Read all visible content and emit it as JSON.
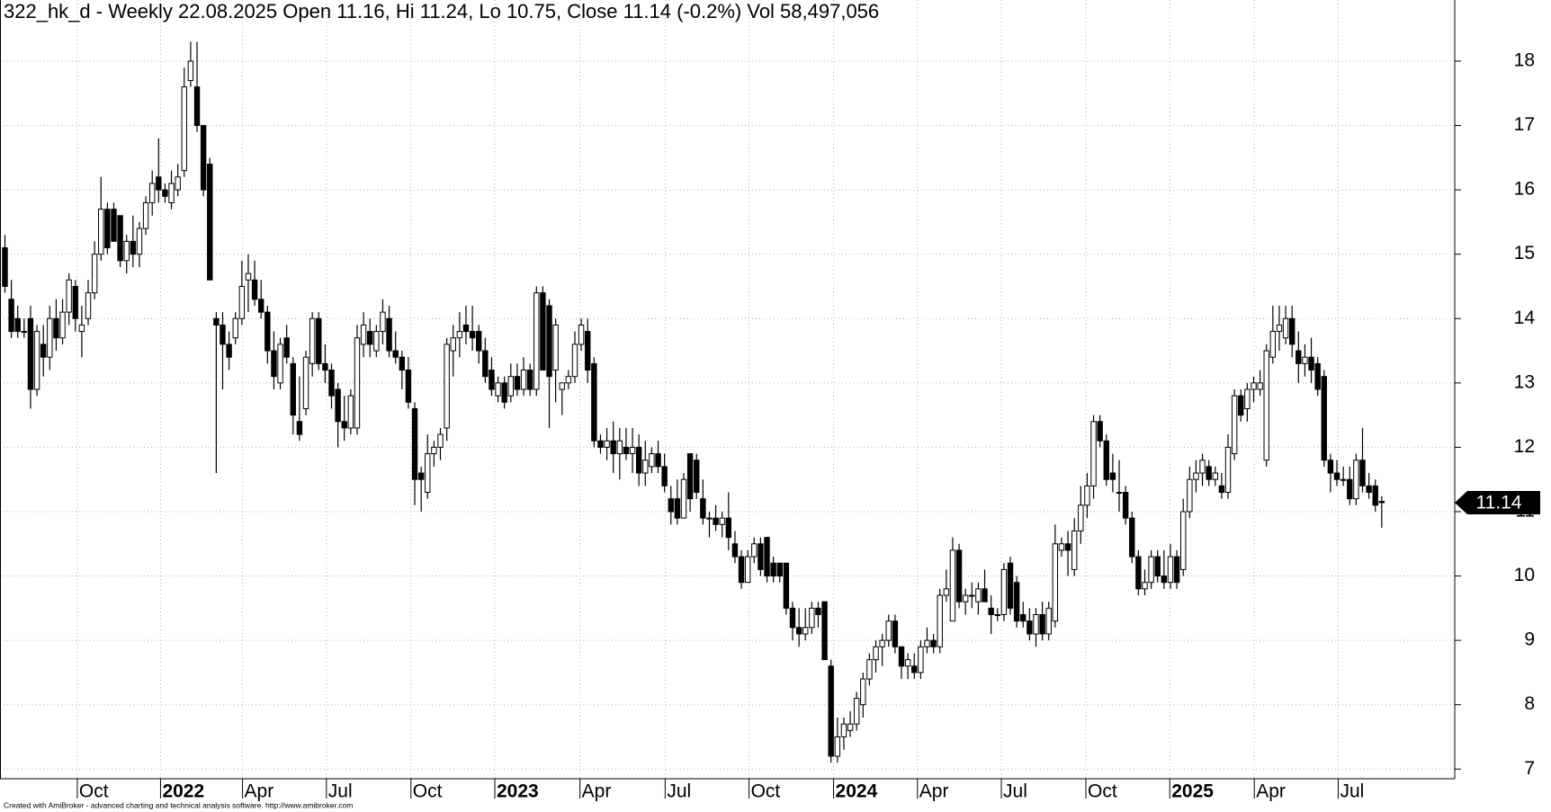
{
  "chart_data": {
    "type": "candlestick",
    "title": "322_hk_d - Weekly 22.08.2025 Open 11.16, Hi 11.24, Lo 10.75, Close 11.14 (-0.2%) Vol 58,497,056",
    "footer": "Created with AmiBroker - advanced charting and technical analysis software. http://www.amibroker.com",
    "open": [
      15.1,
      14.3,
      14.0,
      13.8,
      14.0,
      12.9,
      13.6,
      13.4,
      14.0,
      13.7,
      14.1,
      14.5,
      13.8,
      14.0,
      14.4,
      15.0,
      15.7,
      15.7,
      15.6,
      14.9,
      15.2,
      15.0,
      15.4,
      15.8,
      16.2,
      16.0,
      15.8,
      16.0,
      16.3,
      17.7,
      17.6,
      17.0,
      16.4,
      14.0,
      13.9,
      13.6,
      13.7,
      14.0,
      14.6,
      14.6,
      14.3,
      14.1,
      13.5,
      13.0,
      13.7,
      13.3,
      12.4,
      12.6,
      13.3,
      14.0,
      13.3,
      13.2,
      12.9,
      12.4,
      12.3,
      12.3,
      13.6,
      13.8,
      13.5,
      13.8,
      14.0,
      13.5,
      13.4,
      13.2,
      12.6,
      11.6,
      11.3,
      11.9,
      12.0,
      12.3,
      13.5,
      13.7,
      13.9,
      13.8,
      13.8,
      13.5,
      13.2,
      12.8,
      13.0,
      12.8,
      13.1,
      12.9,
      13.2,
      12.9,
      14.4,
      14.2,
      13.2,
      12.9,
      13.0,
      13.1,
      13.6,
      13.8,
      13.3,
      12.1,
      12.0,
      12.1,
      11.9,
      12.0,
      11.9,
      12.0,
      11.6,
      11.7,
      11.9,
      11.7,
      11.2,
      11.2,
      10.9,
      11.9,
      11.8,
      11.2,
      10.9,
      10.9,
      10.8,
      10.9,
      10.5,
      10.3,
      9.9,
      10.3,
      10.5,
      10.6,
      10.2,
      10.2,
      10.2,
      9.5,
      9.2,
      9.1,
      9.2,
      9.5,
      9.6,
      8.6,
      7.2,
      7.5,
      7.6,
      7.7,
      8.0,
      8.4,
      8.7,
      8.9,
      9.0,
      9.3,
      8.9,
      8.6,
      8.6,
      8.5,
      8.9,
      9.0,
      8.9,
      9.7,
      9.3,
      10.4,
      9.6,
      9.7,
      9.6,
      9.8,
      9.5,
      9.4,
      9.4,
      10.2,
      9.9,
      9.4,
      9.3,
      9.1,
      9.4,
      9.1,
      9.3,
      10.4,
      10.5,
      10.1,
      10.7,
      11.1,
      11.4,
      12.4,
      12.1,
      11.6,
      11.3,
      11.3,
      10.9,
      10.3,
      9.8,
      9.9,
      10.3,
      10.0,
      9.9,
      10.3,
      10.1,
      11.0,
      11.5,
      11.6,
      11.7,
      11.5,
      11.4,
      11.3,
      11.9,
      12.8,
      12.6,
      12.9,
      12.9,
      11.8,
      13.4,
      13.8,
      13.7,
      14.0,
      13.5,
      13.3,
      13.4,
      13.3,
      13.1,
      11.8,
      11.6,
      11.5,
      11.5,
      11.2,
      11.8,
      11.4,
      11.4,
      11.16
    ],
    "high": [
      15.3,
      14.6,
      14.2,
      14.0,
      14.2,
      13.9,
      13.9,
      14.2,
      14.3,
      14.3,
      14.7,
      14.6,
      14.2,
      14.6,
      15.2,
      16.2,
      15.8,
      15.8,
      15.6,
      15.3,
      15.6,
      15.5,
      15.9,
      16.3,
      16.8,
      16.1,
      16.3,
      16.4,
      17.9,
      18.3,
      18.3,
      17.0,
      16.5,
      14.1,
      14.1,
      13.8,
      14.1,
      14.9,
      15.0,
      14.9,
      14.6,
      14.2,
      13.8,
      13.7,
      13.9,
      13.4,
      13.1,
      13.5,
      14.1,
      14.1,
      13.6,
      13.3,
      13.0,
      12.8,
      12.9,
      13.9,
      14.1,
      14.0,
      13.9,
      14.3,
      14.2,
      13.8,
      13.5,
      13.4,
      12.7,
      11.7,
      12.2,
      12.1,
      12.3,
      13.7,
      13.9,
      14.1,
      14.2,
      14.2,
      13.9,
      13.7,
      13.4,
      13.1,
      13.1,
      13.3,
      13.3,
      13.4,
      13.3,
      14.5,
      14.5,
      14.3,
      14.0,
      13.0,
      13.2,
      13.8,
      14.0,
      14.0,
      13.4,
      12.2,
      12.3,
      12.4,
      12.3,
      12.3,
      12.3,
      12.2,
      12.1,
      12.0,
      12.1,
      11.9,
      11.4,
      11.5,
      11.6,
      11.9,
      11.9,
      11.5,
      11.0,
      11.1,
      11.0,
      11.3,
      10.7,
      10.4,
      10.4,
      10.6,
      10.6,
      10.6,
      10.3,
      10.2,
      10.2,
      9.6,
      9.5,
      9.5,
      9.6,
      9.6,
      9.6,
      8.7,
      7.8,
      7.8,
      7.9,
      8.2,
      8.5,
      8.8,
      9.0,
      9.1,
      9.4,
      9.4,
      8.9,
      8.8,
      8.8,
      9.0,
      9.2,
      9.1,
      9.8,
      10.1,
      10.6,
      10.5,
      9.8,
      9.9,
      9.9,
      10.1,
      9.7,
      9.5,
      10.2,
      10.3,
      10.0,
      9.6,
      9.5,
      9.5,
      9.6,
      9.6,
      10.8,
      10.6,
      10.7,
      10.9,
      11.4,
      11.6,
      12.5,
      12.5,
      12.2,
      11.9,
      11.8,
      11.4,
      11.0,
      10.4,
      10.1,
      10.4,
      10.4,
      10.4,
      10.5,
      10.4,
      11.2,
      11.7,
      11.8,
      11.9,
      11.8,
      11.7,
      11.6,
      12.2,
      12.9,
      12.9,
      13.0,
      13.1,
      13.2,
      13.6,
      14.2,
      14.2,
      14.2,
      14.2,
      13.8,
      13.6,
      13.7,
      13.4,
      13.2,
      11.9,
      11.8,
      11.7,
      11.7,
      11.9,
      12.3,
      11.6,
      11.5,
      11.24
    ],
    "low": [
      14.4,
      13.7,
      13.7,
      13.7,
      12.6,
      12.8,
      13.1,
      13.2,
      13.5,
      13.6,
      13.9,
      13.8,
      13.4,
      13.9,
      14.3,
      14.9,
      15.0,
      15.2,
      14.8,
      14.7,
      14.8,
      14.8,
      15.3,
      15.6,
      15.8,
      15.8,
      15.7,
      15.9,
      16.2,
      17.6,
      16.9,
      15.9,
      14.6,
      11.6,
      12.9,
      13.2,
      13.6,
      13.9,
      14.1,
      14.2,
      14.0,
      13.3,
      12.9,
      12.9,
      13.3,
      12.2,
      12.1,
      12.5,
      13.1,
      13.2,
      13.0,
      12.6,
      12.0,
      12.1,
      12.2,
      12.2,
      13.4,
      13.4,
      13.4,
      13.6,
      13.4,
      13.3,
      12.9,
      12.6,
      11.1,
      11.0,
      11.2,
      11.7,
      11.8,
      12.1,
      13.1,
      13.4,
      13.6,
      13.5,
      13.3,
      13.0,
      12.8,
      12.7,
      12.6,
      12.7,
      12.8,
      12.8,
      12.8,
      12.8,
      13.2,
      12.3,
      12.7,
      12.5,
      12.9,
      13.0,
      13.5,
      13.0,
      12.0,
      11.9,
      11.8,
      11.6,
      11.5,
      11.8,
      11.6,
      11.4,
      11.4,
      11.6,
      11.6,
      11.3,
      10.8,
      10.8,
      10.9,
      11.0,
      11.2,
      10.8,
      10.6,
      10.7,
      10.6,
      10.4,
      10.2,
      9.8,
      9.9,
      10.2,
      10.0,
      9.9,
      9.9,
      9.9,
      9.4,
      9.0,
      8.9,
      9.0,
      9.1,
      9.2,
      8.7,
      7.1,
      7.1,
      7.3,
      7.5,
      7.6,
      7.8,
      8.3,
      8.5,
      8.6,
      8.9,
      8.8,
      8.4,
      8.4,
      8.4,
      8.4,
      8.8,
      8.8,
      8.8,
      9.6,
      9.3,
      9.5,
      9.4,
      9.5,
      9.4,
      9.6,
      9.1,
      9.3,
      9.3,
      9.4,
      9.2,
      9.2,
      9.0,
      8.9,
      9.0,
      9.0,
      9.2,
      10.3,
      10.0,
      10.0,
      10.5,
      10.9,
      11.2,
      12.0,
      11.4,
      11.3,
      11.0,
      10.8,
      10.2,
      9.7,
      9.7,
      9.8,
      9.9,
      9.8,
      9.8,
      9.8,
      10.0,
      10.9,
      11.3,
      11.4,
      11.4,
      11.4,
      11.2,
      11.2,
      11.8,
      12.4,
      12.4,
      12.7,
      12.8,
      11.7,
      13.3,
      13.5,
      13.6,
      13.4,
      13.0,
      13.1,
      13.0,
      12.8,
      11.7,
      11.3,
      11.4,
      11.4,
      11.1,
      11.1,
      11.3,
      11.2,
      11.0,
      10.75
    ],
    "close": [
      14.5,
      13.8,
      13.8,
      13.8,
      12.9,
      13.8,
      13.4,
      14.0,
      13.7,
      14.1,
      14.6,
      14.0,
      13.9,
      14.4,
      15.0,
      15.7,
      15.1,
      15.2,
      14.9,
      15.2,
      15.0,
      15.4,
      15.8,
      16.1,
      16.0,
      15.9,
      16.1,
      16.2,
      17.6,
      18.0,
      17.0,
      16.0,
      14.6,
      13.9,
      13.6,
      13.4,
      14.0,
      14.5,
      14.7,
      14.3,
      14.1,
      13.5,
      13.1,
      13.6,
      13.4,
      12.5,
      12.2,
      13.4,
      14.0,
      13.3,
      13.2,
      12.8,
      12.4,
      12.3,
      12.8,
      13.7,
      13.9,
      13.6,
      13.8,
      14.1,
      13.5,
      13.4,
      13.2,
      12.7,
      11.5,
      11.5,
      11.9,
      12.0,
      12.2,
      13.6,
      13.7,
      13.8,
      13.8,
      13.7,
      13.5,
      13.1,
      12.9,
      13.0,
      12.7,
      13.1,
      12.9,
      13.2,
      12.9,
      14.4,
      13.2,
      13.1,
      13.9,
      13.0,
      13.1,
      13.6,
      13.9,
      13.2,
      12.1,
      12.0,
      12.1,
      11.9,
      12.1,
      11.9,
      12.0,
      11.6,
      11.8,
      11.9,
      11.7,
      11.4,
      11.0,
      10.9,
      11.5,
      11.2,
      11.3,
      10.9,
      10.9,
      10.8,
      10.9,
      10.6,
      10.3,
      9.9,
      10.3,
      10.5,
      10.1,
      10.0,
      10.0,
      10.0,
      9.5,
      9.2,
      9.1,
      9.2,
      9.5,
      9.4,
      8.7,
      7.2,
      7.5,
      7.7,
      7.7,
      8.1,
      8.4,
      8.7,
      8.9,
      9.0,
      9.3,
      8.9,
      8.6,
      8.7,
      8.5,
      8.9,
      9.0,
      8.9,
      9.7,
      9.8,
      10.4,
      9.6,
      9.7,
      9.7,
      9.8,
      9.6,
      9.4,
      9.4,
      10.1,
      9.5,
      9.3,
      9.3,
      9.1,
      9.4,
      9.1,
      9.5,
      10.5,
      10.5,
      10.4,
      10.7,
      11.1,
      11.4,
      12.4,
      12.1,
      11.5,
      11.5,
      11.3,
      10.9,
      10.3,
      9.8,
      9.9,
      10.3,
      10.0,
      9.9,
      10.3,
      9.9,
      11.0,
      11.5,
      11.6,
      11.8,
      11.5,
      11.6,
      11.3,
      12.0,
      12.8,
      12.5,
      12.9,
      13.0,
      13.0,
      13.5,
      13.8,
      13.9,
      14.0,
      13.6,
      13.3,
      13.4,
      13.2,
      12.9,
      11.8,
      11.6,
      11.5,
      11.5,
      11.2,
      11.8,
      11.4,
      11.3,
      11.1,
      11.14
    ],
    "up_color": "#ffffff",
    "down_color": "#000000",
    "last_price": 11.14,
    "xlim": [
      -0.77,
      226.4
    ],
    "xticks": [
      {
        "value": 11.3,
        "label": "Oct"
      },
      {
        "value": 24.3,
        "label": "2022"
      },
      {
        "value": 37.1,
        "label": "Apr"
      },
      {
        "value": 50.2,
        "label": "Jul"
      },
      {
        "value": 63.4,
        "label": "Oct"
      },
      {
        "value": 76.5,
        "label": "2023"
      },
      {
        "value": 89.8,
        "label": "Apr"
      },
      {
        "value": 103.1,
        "label": "Jul"
      },
      {
        "value": 116.2,
        "label": "Oct"
      },
      {
        "value": 129.4,
        "label": "2024"
      },
      {
        "value": 142.5,
        "label": "Apr"
      },
      {
        "value": 155.6,
        "label": "Jul"
      },
      {
        "value": 168.8,
        "label": "Oct"
      },
      {
        "value": 181.9,
        "label": "2025"
      },
      {
        "value": 195.1,
        "label": "Apr"
      },
      {
        "value": 208.2,
        "label": "Jul"
      }
    ],
    "ylim": [
      6.85,
      18.95
    ],
    "yticks": [
      7,
      8,
      9,
      10,
      11,
      12,
      13,
      14,
      15,
      16,
      17,
      18
    ],
    "grid": true
  }
}
